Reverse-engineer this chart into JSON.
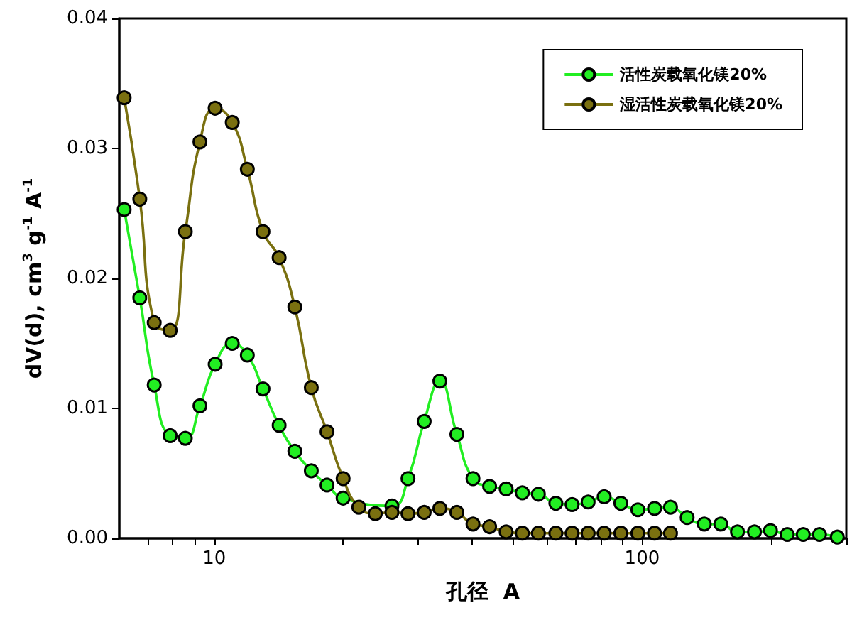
{
  "chart_data": {
    "type": "line",
    "xlabel": "孔径  A",
    "ylabel": "dV(d), cm$^{3}$ g$^{-1}$ A$^{-1}$",
    "log": "x",
    "xlim": [
      6,
      300
    ],
    "xticks": [
      {
        "value": 7,
        "label": null
      },
      {
        "value": 8,
        "label": null
      },
      {
        "value": 9,
        "label": null
      },
      10,
      {
        "value": 20,
        "label": null
      },
      {
        "value": 30,
        "label": null
      },
      {
        "value": 40,
        "label": null
      },
      {
        "value": 50,
        "label": null
      },
      {
        "value": 60,
        "label": null
      },
      {
        "value": 70,
        "label": null
      },
      {
        "value": 80,
        "label": null
      },
      {
        "value": 90,
        "label": null
      },
      100,
      {
        "value": 200,
        "label": null
      },
      {
        "value": 300,
        "label": null
      }
    ],
    "ylim": [
      0,
      0.04
    ],
    "yticks": [
      {
        "value": 0,
        "label": "0.00"
      },
      {
        "value": 0.01,
        "label": "0.01"
      },
      {
        "value": 0.02,
        "label": "0.02"
      },
      {
        "value": 0.03,
        "label": "0.03"
      },
      {
        "value": 0.04,
        "label": "0.04"
      }
    ],
    "legend": "top right",
    "marker": "circle",
    "line_style": "solid",
    "grid": false,
    "series": [
      {
        "name": "活性炭载氧化镁20%",
        "color": "#22ee22",
        "x": [
          6.16,
          6.7,
          7.24,
          7.89,
          8.56,
          9.26,
          10.05,
          11.02,
          11.95,
          13.0,
          14.18,
          15.43,
          16.86,
          18.35,
          20.01,
          21.77,
          23.79,
          26.02,
          28.37,
          30.95,
          33.67,
          36.9,
          40.24,
          44.01,
          48.1,
          52.48,
          57.22,
          62.86,
          68.6,
          74.78,
          81.51,
          89.17,
          97.73,
          106.9,
          116.5,
          127.4,
          139.7,
          152.7,
          167.0,
          183.0,
          199.5,
          218.3,
          237.9,
          259.7,
          285.8
        ],
        "values": [
          0.0253,
          0.0185,
          0.0118,
          0.0079,
          0.0077,
          0.0102,
          0.0134,
          0.015,
          0.0141,
          0.0115,
          0.0087,
          0.0067,
          0.0052,
          0.0041,
          0.0031,
          null,
          null,
          0.0025,
          0.0046,
          0.009,
          0.0121,
          0.008,
          0.0046,
          0.004,
          0.0038,
          0.0035,
          0.0034,
          0.0027,
          0.0026,
          0.0028,
          0.0032,
          0.0027,
          0.0022,
          0.0023,
          0.0024,
          0.0016,
          0.0011,
          0.0011,
          0.0005,
          0.0005,
          0.0006,
          0.0003,
          0.0003,
          0.0003,
          0.0001
        ]
      },
      {
        "name": "湿活性炭载氧化镁20%",
        "color": "#7a7010",
        "x": [
          6.16,
          6.7,
          7.24,
          7.89,
          8.56,
          9.26,
          10.05,
          11.02,
          11.95,
          13.0,
          14.18,
          15.43,
          16.86,
          18.35,
          20.01,
          21.77,
          23.79,
          26.02,
          28.37,
          30.95,
          33.67,
          36.9,
          40.24,
          44.01,
          48.1,
          52.48,
          57.22,
          62.86,
          68.6,
          74.78,
          81.51,
          89.17,
          97.73,
          106.9,
          116.5
        ],
        "values": [
          0.0339,
          0.0261,
          0.0166,
          0.016,
          0.0236,
          0.0305,
          0.0331,
          0.032,
          0.0284,
          0.0236,
          0.0216,
          0.0178,
          0.0116,
          0.0082,
          0.0046,
          0.0024,
          0.0019,
          0.002,
          0.0019,
          0.002,
          0.0023,
          0.002,
          0.0011,
          0.0009,
          0.0005,
          0.0004,
          0.0004,
          0.0004,
          0.0004,
          0.0004,
          0.0004,
          0.0004,
          0.0004,
          0.0004,
          0.0004
        ]
      }
    ]
  }
}
